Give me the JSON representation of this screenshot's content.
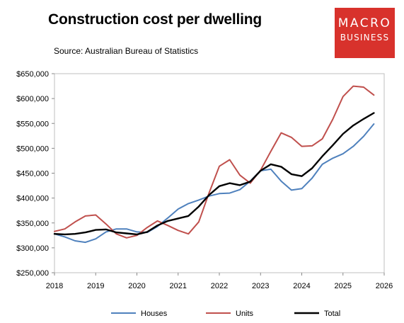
{
  "header": {
    "title": "Construction cost per dwelling",
    "source": "Source: Australian Bureau of Statistics"
  },
  "logo": {
    "line1": "MACRO",
    "line2": "BUSINESS",
    "color": "#d8322c"
  },
  "chart_data": {
    "type": "line",
    "title": "Construction cost per dwelling",
    "xlabel": "",
    "ylabel": "",
    "xlim": [
      2018,
      2026
    ],
    "ylim": [
      250000,
      650000
    ],
    "x_ticks": [
      "2018",
      "2019",
      "2020",
      "2021",
      "2022",
      "2023",
      "2024",
      "2025",
      "2026"
    ],
    "y_ticks": [
      "$250,000",
      "$300,000",
      "$350,000",
      "$400,000",
      "$450,000",
      "$500,000",
      "$550,000",
      "$600,000",
      "$650,000"
    ],
    "y_tick_values": [
      250000,
      300000,
      350000,
      400000,
      450000,
      500000,
      550000,
      600000,
      650000
    ],
    "grid": false,
    "legend_position": "bottom",
    "x": [
      2018.0,
      2018.25,
      2018.5,
      2018.75,
      2019.0,
      2019.25,
      2019.5,
      2019.75,
      2020.0,
      2020.25,
      2020.5,
      2020.75,
      2021.0,
      2021.25,
      2021.5,
      2021.75,
      2022.0,
      2022.25,
      2022.5,
      2022.75,
      2023.0,
      2023.25,
      2023.5,
      2023.75,
      2024.0,
      2024.25,
      2024.5,
      2024.75,
      2025.0,
      2025.25,
      2025.5,
      2025.75
    ],
    "series": [
      {
        "name": "Houses",
        "color": "#4f81bd",
        "values": [
          328000,
          322000,
          314000,
          311000,
          318000,
          332000,
          338000,
          338000,
          332000,
          331000,
          343000,
          360000,
          378000,
          389000,
          396000,
          404000,
          409000,
          410000,
          417000,
          434000,
          455000,
          458000,
          434000,
          416000,
          419000,
          440000,
          468000,
          480000,
          489000,
          504000,
          524000,
          549000
        ]
      },
      {
        "name": "Units",
        "color": "#c0504d",
        "values": [
          333000,
          338000,
          352000,
          364000,
          366000,
          348000,
          328000,
          320000,
          325000,
          341000,
          354000,
          345000,
          335000,
          328000,
          352000,
          410000,
          464000,
          477000,
          446000,
          430000,
          456000,
          494000,
          531000,
          522000,
          504000,
          505000,
          519000,
          558000,
          604000,
          625000,
          623000,
          607000
        ]
      },
      {
        "name": "Total",
        "color": "#000000",
        "values": [
          328000,
          327000,
          328000,
          331000,
          336000,
          337000,
          331000,
          329000,
          327000,
          332000,
          345000,
          354000,
          359000,
          364000,
          383000,
          406000,
          424000,
          430000,
          426000,
          433000,
          455000,
          468000,
          463000,
          448000,
          444000,
          460000,
          484000,
          506000,
          529000,
          546000,
          559000,
          571000
        ]
      }
    ]
  }
}
